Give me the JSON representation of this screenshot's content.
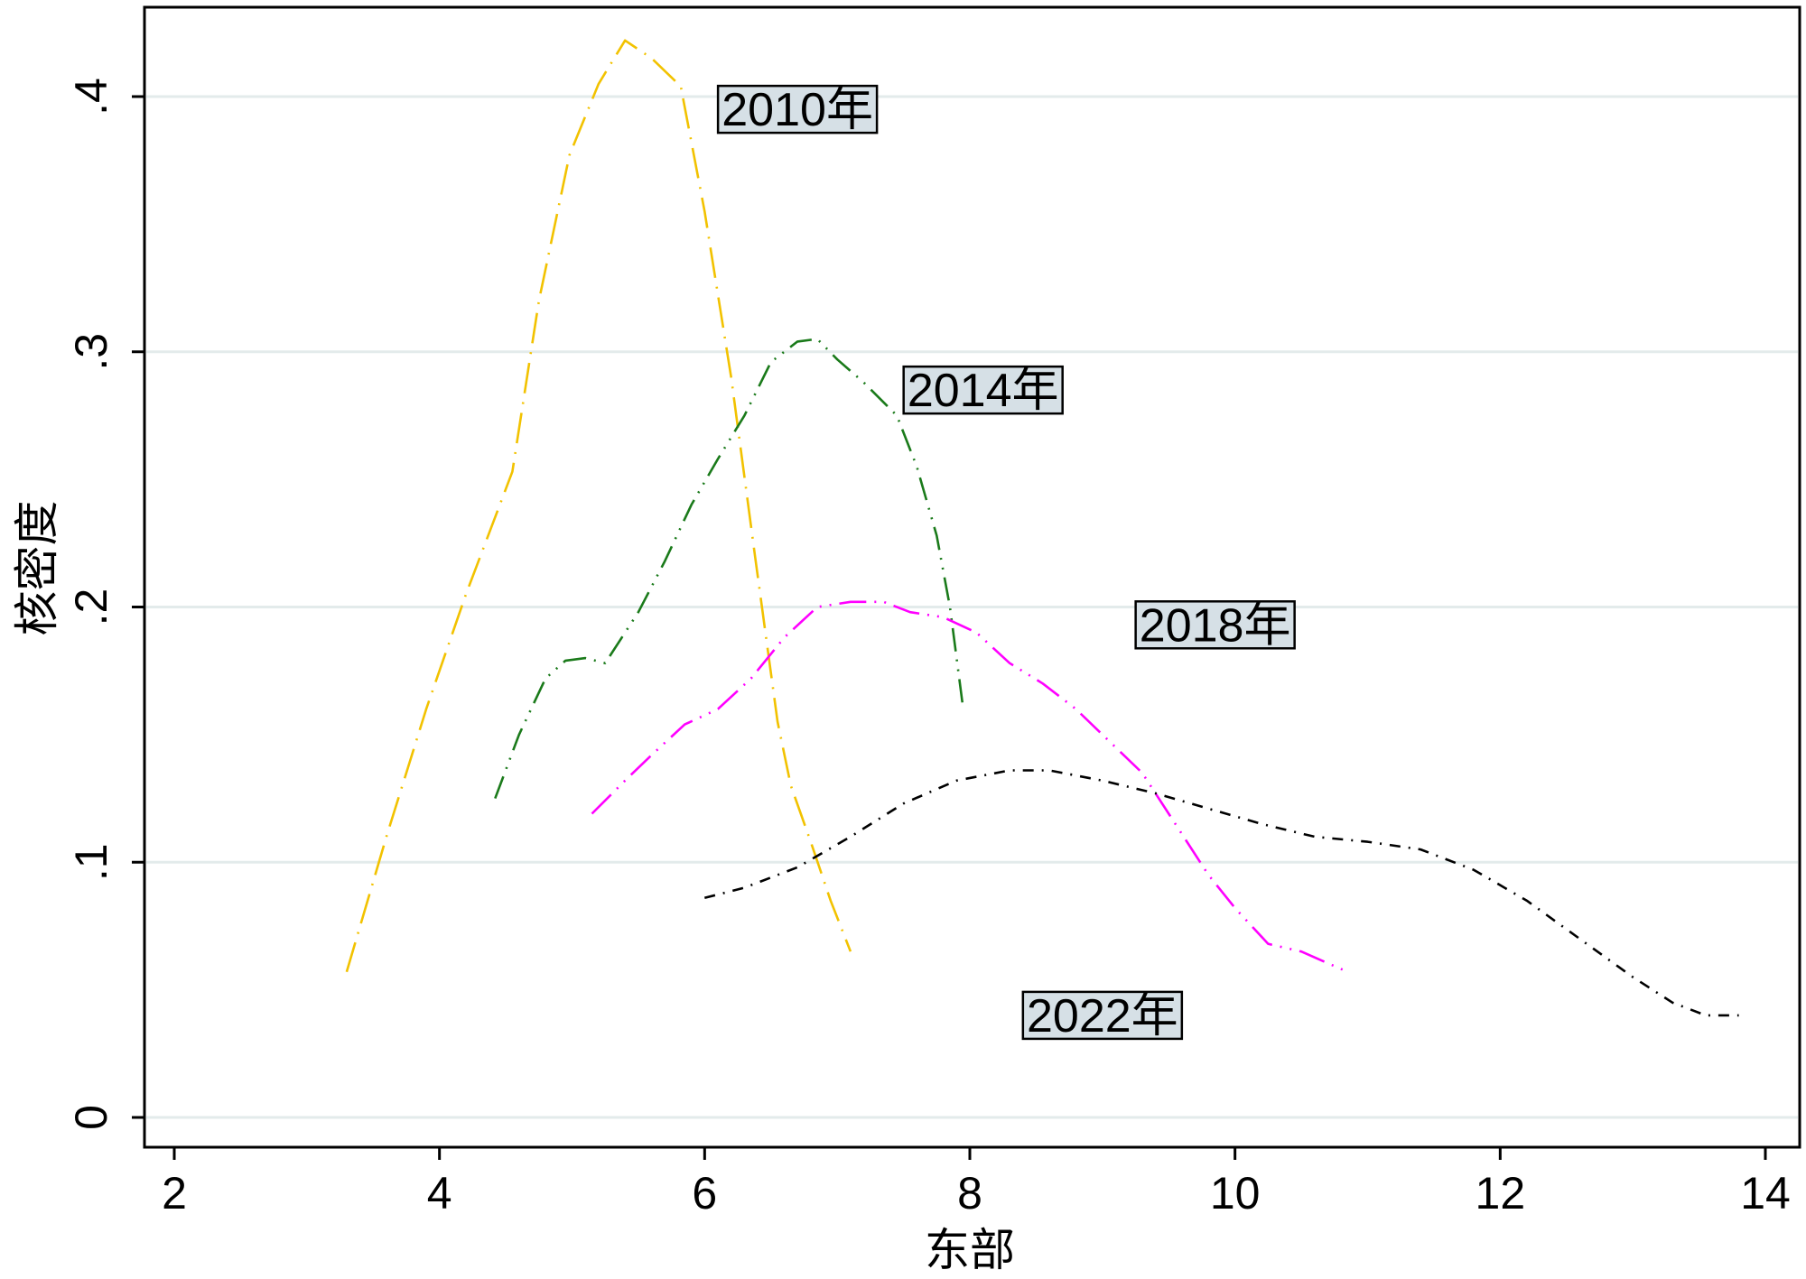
{
  "chart_data": {
    "type": "line",
    "xlabel": "东部",
    "ylabel": "核密度",
    "xlim": [
      2,
      14
    ],
    "ylim": [
      0,
      0.43
    ],
    "x_ticks": [
      2,
      4,
      6,
      8,
      10,
      12,
      14
    ],
    "x_tick_labels": [
      "2",
      "4",
      "6",
      "8",
      "10",
      "12",
      "14"
    ],
    "y_ticks": [
      0,
      0.1,
      0.2,
      0.3,
      0.4
    ],
    "y_tick_labels": [
      "0",
      ".1",
      ".2",
      ".3",
      ".4"
    ],
    "grid": true,
    "series": [
      {
        "name": "2010年",
        "color": "#f2c200",
        "dash": "long-dash-dot",
        "points": [
          [
            3.3,
            0.057
          ],
          [
            3.6,
            0.11
          ],
          [
            3.9,
            0.16
          ],
          [
            4.2,
            0.205
          ],
          [
            4.55,
            0.253
          ],
          [
            4.75,
            0.32
          ],
          [
            4.98,
            0.377
          ],
          [
            5.2,
            0.405
          ],
          [
            5.4,
            0.422
          ],
          [
            5.6,
            0.415
          ],
          [
            5.82,
            0.404
          ],
          [
            6.0,
            0.355
          ],
          [
            6.2,
            0.29
          ],
          [
            6.38,
            0.22
          ],
          [
            6.55,
            0.155
          ],
          [
            6.65,
            0.13
          ],
          [
            6.8,
            0.108
          ],
          [
            6.95,
            0.085
          ],
          [
            7.1,
            0.065
          ]
        ]
      },
      {
        "name": "2014年",
        "color": "#1a7a1a",
        "dash": "dash-dot-dot",
        "points": [
          [
            4.42,
            0.125
          ],
          [
            4.6,
            0.15
          ],
          [
            4.8,
            0.172
          ],
          [
            4.95,
            0.179
          ],
          [
            5.1,
            0.18
          ],
          [
            5.25,
            0.178
          ],
          [
            5.5,
            0.198
          ],
          [
            5.7,
            0.218
          ],
          [
            5.9,
            0.24
          ],
          [
            6.1,
            0.258
          ],
          [
            6.3,
            0.275
          ],
          [
            6.5,
            0.296
          ],
          [
            6.7,
            0.304
          ],
          [
            6.85,
            0.305
          ],
          [
            7.0,
            0.297
          ],
          [
            7.2,
            0.288
          ],
          [
            7.45,
            0.275
          ],
          [
            7.6,
            0.255
          ],
          [
            7.75,
            0.228
          ],
          [
            7.85,
            0.2
          ],
          [
            7.95,
            0.16
          ]
        ]
      },
      {
        "name": "2018年",
        "color": "#ff00ff",
        "dash": "long-dash-dot-dot",
        "points": [
          [
            5.15,
            0.119
          ],
          [
            5.4,
            0.132
          ],
          [
            5.6,
            0.142
          ],
          [
            5.85,
            0.154
          ],
          [
            6.1,
            0.16
          ],
          [
            6.35,
            0.172
          ],
          [
            6.6,
            0.188
          ],
          [
            6.85,
            0.2
          ],
          [
            7.1,
            0.202
          ],
          [
            7.35,
            0.202
          ],
          [
            7.55,
            0.198
          ],
          [
            7.8,
            0.196
          ],
          [
            8.05,
            0.19
          ],
          [
            8.3,
            0.178
          ],
          [
            8.55,
            0.17
          ],
          [
            8.8,
            0.16
          ],
          [
            9.0,
            0.15
          ],
          [
            9.3,
            0.135
          ],
          [
            9.55,
            0.115
          ],
          [
            9.8,
            0.095
          ],
          [
            10.0,
            0.082
          ],
          [
            10.25,
            0.068
          ],
          [
            10.5,
            0.065
          ],
          [
            10.85,
            0.057
          ]
        ]
      },
      {
        "name": "2022年",
        "color": "#000000",
        "dash": "dash-dot",
        "points": [
          [
            6.0,
            0.086
          ],
          [
            6.3,
            0.09
          ],
          [
            6.7,
            0.098
          ],
          [
            7.1,
            0.11
          ],
          [
            7.5,
            0.123
          ],
          [
            7.9,
            0.132
          ],
          [
            8.3,
            0.136
          ],
          [
            8.6,
            0.136
          ],
          [
            9.0,
            0.132
          ],
          [
            9.4,
            0.127
          ],
          [
            9.8,
            0.121
          ],
          [
            10.2,
            0.115
          ],
          [
            10.6,
            0.11
          ],
          [
            11.0,
            0.108
          ],
          [
            11.4,
            0.105
          ],
          [
            11.8,
            0.097
          ],
          [
            12.2,
            0.085
          ],
          [
            12.6,
            0.07
          ],
          [
            13.0,
            0.055
          ],
          [
            13.3,
            0.045
          ],
          [
            13.55,
            0.04
          ],
          [
            13.8,
            0.04
          ]
        ]
      }
    ],
    "annotations": [
      {
        "text": "2010年",
        "x": 6.7,
        "y": 0.395
      },
      {
        "text": "2014年",
        "x": 8.1,
        "y": 0.285
      },
      {
        "text": "2018年",
        "x": 9.85,
        "y": 0.193
      },
      {
        "text": "2022年",
        "x": 9.0,
        "y": 0.04
      }
    ],
    "plot_background": "#ffffff",
    "gridline_color": "#e3ebeb",
    "annotation_box_fill": "#d6e0e6"
  }
}
